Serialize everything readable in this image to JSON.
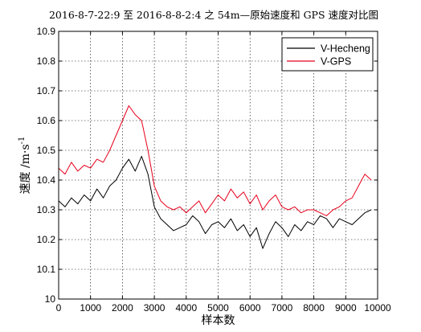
{
  "chart_data": {
    "type": "line",
    "title": "2016-8-7-22:9 至 2016-8-8-2:4 之 54m—原始速度和 GPS 速度对比图",
    "xlabel": "样本数",
    "ylabel": "速度 /m·s",
    "ylabel_superscript": "-1",
    "xlim": [
      0,
      10000
    ],
    "ylim": [
      10,
      10.9
    ],
    "x_ticks": [
      0,
      1000,
      2000,
      3000,
      4000,
      5000,
      6000,
      7000,
      8000,
      9000,
      10000
    ],
    "y_ticks": [
      10,
      10.1,
      10.2,
      10.3,
      10.4,
      10.5,
      10.6,
      10.7,
      10.8,
      10.9
    ],
    "x_tick_labels": [
      "0",
      "1000",
      "2000",
      "3000",
      "4000",
      "5000",
      "6000",
      "7000",
      "8000",
      "9000",
      "10000"
    ],
    "y_tick_labels": [
      "10",
      "10.1",
      "10.2",
      "10.3",
      "10.4",
      "10.5",
      "10.6",
      "10.7",
      "10.8",
      "10.9"
    ],
    "grid": true,
    "legend_position": "top-right",
    "series": [
      {
        "name": "V-Hecheng",
        "color": "#000000",
        "x": [
          0,
          200,
          400,
          600,
          800,
          1000,
          1200,
          1400,
          1600,
          1800,
          2000,
          2200,
          2400,
          2600,
          2800,
          3000,
          3200,
          3400,
          3600,
          3800,
          4000,
          4200,
          4400,
          4600,
          4800,
          5000,
          5200,
          5400,
          5600,
          5800,
          6000,
          6200,
          6400,
          6600,
          6800,
          7000,
          7200,
          7400,
          7600,
          7800,
          8000,
          8200,
          8400,
          8600,
          8800,
          9000,
          9200,
          9400,
          9600,
          9800
        ],
        "y": [
          10.33,
          10.31,
          10.34,
          10.32,
          10.35,
          10.33,
          10.37,
          10.34,
          10.38,
          10.4,
          10.44,
          10.47,
          10.43,
          10.48,
          10.42,
          10.31,
          10.27,
          10.25,
          10.23,
          10.24,
          10.25,
          10.28,
          10.26,
          10.22,
          10.25,
          10.26,
          10.24,
          10.27,
          10.23,
          10.25,
          10.21,
          10.24,
          10.17,
          10.22,
          10.26,
          10.24,
          10.21,
          10.25,
          10.23,
          10.26,
          10.25,
          10.28,
          10.27,
          10.24,
          10.27,
          10.26,
          10.25,
          10.27,
          10.29,
          10.3
        ]
      },
      {
        "name": "V-GPS",
        "color": "#e8001c",
        "x": [
          0,
          200,
          400,
          600,
          800,
          1000,
          1200,
          1400,
          1600,
          1800,
          2000,
          2200,
          2400,
          2600,
          2800,
          3000,
          3200,
          3400,
          3600,
          3800,
          4000,
          4200,
          4400,
          4600,
          4800,
          5000,
          5200,
          5400,
          5600,
          5800,
          6000,
          6200,
          6400,
          6600,
          6800,
          7000,
          7200,
          7400,
          7600,
          7800,
          8000,
          8200,
          8400,
          8600,
          8800,
          9000,
          9200,
          9400,
          9600,
          9800
        ],
        "y": [
          10.44,
          10.42,
          10.46,
          10.43,
          10.45,
          10.44,
          10.47,
          10.46,
          10.5,
          10.55,
          10.6,
          10.65,
          10.62,
          10.6,
          10.5,
          10.38,
          10.33,
          10.31,
          10.3,
          10.31,
          10.29,
          10.31,
          10.33,
          10.29,
          10.32,
          10.35,
          10.33,
          10.37,
          10.34,
          10.36,
          10.32,
          10.35,
          10.3,
          10.33,
          10.35,
          10.31,
          10.3,
          10.31,
          10.29,
          10.3,
          10.3,
          10.29,
          10.28,
          10.3,
          10.31,
          10.33,
          10.34,
          10.38,
          10.42,
          10.4
        ]
      }
    ]
  }
}
